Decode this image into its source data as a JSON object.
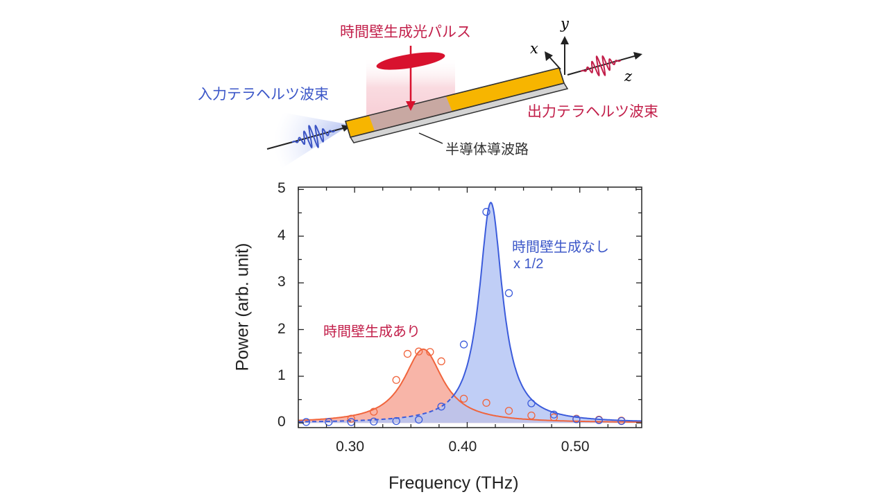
{
  "diagram": {
    "pump_label": "時間壁生成光パルス",
    "input_label": "入力テラヘルツ波束",
    "output_label": "出力テラヘルツ波束",
    "waveguide_label": "半導体導波路",
    "axis_x": "x",
    "axis_y": "y",
    "axis_z": "z",
    "colors": {
      "pump": "#d8122e",
      "input": "#3b54c4",
      "output": "#c21f4a",
      "waveguide_top": "#f7b500",
      "waveguide_pumped": "#c8a8a2"
    }
  },
  "chart_data": {
    "type": "line",
    "xlabel": "Frequency (THz)",
    "ylabel": "Power (arb.  unit)",
    "xlim": [
      0.25,
      0.555
    ],
    "ylim": [
      -0.1,
      5.05
    ],
    "x_ticks": [
      "0.30",
      "0.40",
      "0.50"
    ],
    "x_tick_values": [
      0.3,
      0.4,
      0.5
    ],
    "y_ticks": [
      "0",
      "1",
      "2",
      "3",
      "4",
      "5"
    ],
    "y_tick_values": [
      0,
      1,
      2,
      3,
      4,
      5
    ],
    "series": [
      {
        "name": "時間壁生成なし",
        "note": "x 1/2",
        "color": "#3b5bdb",
        "fill": "#b5c6f5",
        "fit": {
          "center": 0.421,
          "gamma": 0.0125,
          "amplitude": 4.72
        },
        "points_x": [
          0.257,
          0.277,
          0.297,
          0.317,
          0.337,
          0.357,
          0.377,
          0.397,
          0.417,
          0.437,
          0.457,
          0.477,
          0.497,
          0.517,
          0.537
        ],
        "points_y": [
          0.02,
          0.02,
          0.02,
          0.03,
          0.04,
          0.07,
          0.35,
          1.68,
          4.52,
          2.78,
          0.42,
          0.18,
          0.08,
          0.06,
          0.04
        ]
      },
      {
        "name": "時間壁生成あり",
        "color": "#f0643c",
        "fill": "#f8b5a8",
        "fit": {
          "center": 0.361,
          "gamma": 0.021,
          "amplitude": 1.58
        },
        "points_x": [
          0.297,
          0.317,
          0.337,
          0.347,
          0.357,
          0.367,
          0.377,
          0.397,
          0.417,
          0.437,
          0.457,
          0.477,
          0.497,
          0.517,
          0.537
        ],
        "points_y": [
          0.09,
          0.24,
          0.92,
          1.48,
          1.53,
          1.52,
          1.32,
          0.52,
          0.43,
          0.26,
          0.16,
          0.12,
          0.09,
          0.07,
          0.05
        ]
      }
    ]
  }
}
